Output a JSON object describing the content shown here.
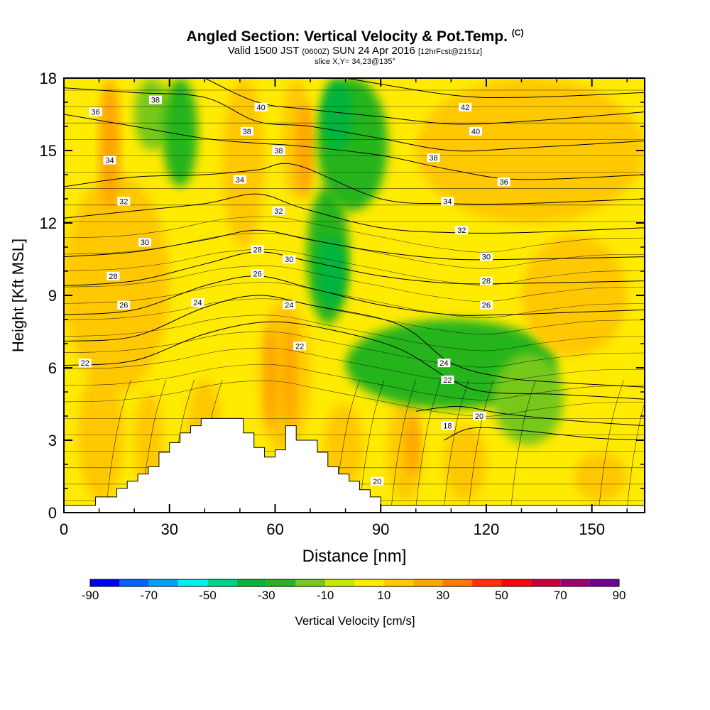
{
  "header": {
    "title": "Angled Section: Vertical Velocity & Pot.Temp.",
    "title_unit": "(C)",
    "valid_prefix": "Valid 1500 JST",
    "valid_utc": "(0600Z)",
    "valid_date": "SUN 24 Apr 2016",
    "forecast": "[12hrFcst@2151z]",
    "slice": "slice X,Y= 34,23@135°"
  },
  "colorbar": {
    "label": "Vertical Velocity [cm/s]",
    "ticks": [
      "-90",
      "-70",
      "-50",
      "-30",
      "-10",
      "10",
      "30",
      "50",
      "70",
      "90"
    ],
    "colors": [
      "#0000f0",
      "#0064ff",
      "#00a0ff",
      "#00f0f0",
      "#00d28c",
      "#00b43c",
      "#28b41e",
      "#78c81e",
      "#c8e600",
      "#ffeb00",
      "#ffc800",
      "#ffa500",
      "#ff7800",
      "#ff3200",
      "#f00a0a",
      "#c8003c",
      "#a0006e",
      "#6e0096"
    ]
  },
  "chart_data": {
    "type": "heatmap",
    "xlabel": "Distance [nm]",
    "ylabel": "Height [Kft MSL]",
    "xlim": [
      0,
      165
    ],
    "ylim": [
      0,
      18
    ],
    "xticks": [
      "0",
      "30",
      "60",
      "90",
      "120",
      "150"
    ],
    "yticks": [
      "0",
      "3",
      "6",
      "9",
      "12",
      "15",
      "18"
    ],
    "background_color": "#c8e600",
    "field_cells": [
      {
        "x": [
          0,
          165
        ],
        "y": [
          0,
          18
        ],
        "w": "0 to 10"
      },
      {
        "x": [
          4,
          17
        ],
        "y": [
          0.5,
          6
        ],
        "w": "10 to 20"
      },
      {
        "x": [
          20,
          28
        ],
        "y": [
          1,
          5
        ],
        "w": "10 to 20"
      },
      {
        "x": [
          35,
          45
        ],
        "y": [
          1,
          5.5
        ],
        "w": "10 to 20"
      },
      {
        "x": [
          55,
          70
        ],
        "y": [
          2.5,
          8.8
        ],
        "w": "10 to 20"
      },
      {
        "x": [
          57,
          61
        ],
        "y": [
          3.5,
          7.8
        ],
        "w": "20 to 30"
      },
      {
        "x": [
          62,
          66
        ],
        "y": [
          3.5,
          7.8
        ],
        "w": "20 to 30"
      },
      {
        "x": [
          74,
          85
        ],
        "y": [
          1,
          4.5
        ],
        "w": "10 to 20"
      },
      {
        "x": [
          92,
          102
        ],
        "y": [
          0.5,
          4.8
        ],
        "w": "10 to 20"
      },
      {
        "x": [
          97,
          101
        ],
        "y": [
          1.5,
          4
        ],
        "w": "20 to 30"
      },
      {
        "x": [
          108,
          120
        ],
        "y": [
          0.5,
          3.6
        ],
        "w": "10 to 20"
      },
      {
        "x": [
          145,
          160
        ],
        "y": [
          0.5,
          2.5
        ],
        "w": "10 to 20"
      },
      {
        "x": [
          0,
          30
        ],
        "y": [
          5,
          14
        ],
        "w": "10 to 20"
      },
      {
        "x": [
          10,
          16
        ],
        "y": [
          12.5,
          18
        ],
        "w": "20 to 30"
      },
      {
        "x": [
          20,
          30
        ],
        "y": [
          15,
          18
        ],
        "w": "-10 to -20"
      },
      {
        "x": [
          28,
          38
        ],
        "y": [
          13.5,
          18
        ],
        "w": "-20 to -30"
      },
      {
        "x": [
          45,
          57
        ],
        "y": [
          11,
          18
        ],
        "w": "10 to 20"
      },
      {
        "x": [
          62,
          70
        ],
        "y": [
          13,
          18
        ],
        "w": "10 to 20"
      },
      {
        "x": [
          66,
          71
        ],
        "y": [
          13,
          17
        ],
        "w": "20 to 30"
      },
      {
        "x": [
          69,
          81
        ],
        "y": [
          7.8,
          13.5
        ],
        "w": "-20 to -30"
      },
      {
        "x": [
          72,
          80
        ],
        "y": [
          8.5,
          11.5
        ],
        "w": "-30 to -40"
      },
      {
        "x": [
          72,
          92
        ],
        "y": [
          12.5,
          18
        ],
        "w": "-20 to -30"
      },
      {
        "x": [
          73,
          82
        ],
        "y": [
          15,
          18
        ],
        "w": "-30 to -40"
      },
      {
        "x": [
          80,
          140
        ],
        "y": [
          4.3,
          8
        ],
        "w": "-20 to -30"
      },
      {
        "x": [
          100,
          165
        ],
        "y": [
          12,
          18
        ],
        "w": "10 to 20"
      },
      {
        "x": [
          130,
          160
        ],
        "y": [
          6.5,
          11.5
        ],
        "w": "10 to 20"
      },
      {
        "x": [
          122,
          142
        ],
        "y": [
          2.8,
          6.6
        ],
        "w": "-10 to -20"
      }
    ],
    "theta_contours": [
      {
        "label": "18",
        "x": [
          108,
          116,
          130,
          150,
          165
        ],
        "y": [
          3.0,
          3.5,
          3.4,
          3.1,
          3.0
        ]
      },
      {
        "label": "20",
        "x": [
          100,
          112,
          125,
          145,
          165
        ],
        "y": [
          4.2,
          4.4,
          4.1,
          3.8,
          3.6
        ]
      },
      {
        "label": "22",
        "x": [
          0,
          20,
          40,
          58,
          75,
          95,
          110,
          120,
          140,
          165
        ],
        "y": [
          6.1,
          6.3,
          7.4,
          7.9,
          7.6,
          6.8,
          5.5,
          5.0,
          4.9,
          4.7
        ]
      },
      {
        "label": "24",
        "x": [
          0,
          20,
          40,
          55,
          70,
          95,
          110,
          125,
          140,
          165
        ],
        "y": [
          7.1,
          7.3,
          8.5,
          9.0,
          8.6,
          7.8,
          6.2,
          5.6,
          5.4,
          5.2
        ]
      },
      {
        "label": "26",
        "x": [
          0,
          20,
          40,
          55,
          70,
          90,
          110,
          125,
          145,
          165
        ],
        "y": [
          8.2,
          8.4,
          9.4,
          9.8,
          9.3,
          8.6,
          8.2,
          8.2,
          8.3,
          8.4
        ]
      },
      {
        "label": "28",
        "x": [
          0,
          20,
          40,
          55,
          70,
          90,
          110,
          130,
          165
        ],
        "y": [
          9.4,
          9.6,
          10.3,
          10.8,
          10.4,
          9.8,
          9.5,
          9.5,
          9.6
        ]
      },
      {
        "label": "30",
        "x": [
          0,
          20,
          40,
          55,
          70,
          90,
          110,
          130,
          165
        ],
        "y": [
          10.6,
          10.8,
          11.3,
          11.7,
          11.3,
          10.8,
          10.5,
          10.5,
          10.6
        ]
      },
      {
        "label": "32",
        "x": [
          0,
          20,
          40,
          55,
          68,
          90,
          110,
          130,
          165
        ],
        "y": [
          12.2,
          12.5,
          12.8,
          13.2,
          12.6,
          11.8,
          11.6,
          11.6,
          11.8
        ]
      },
      {
        "label": "34",
        "x": [
          0,
          20,
          40,
          55,
          66,
          90,
          110,
          130,
          165
        ],
        "y": [
          13.5,
          13.9,
          14.0,
          14.2,
          14.4,
          13.0,
          12.8,
          12.8,
          13.0
        ]
      },
      {
        "label": "36",
        "x": [
          0,
          20,
          40,
          55,
          66,
          90,
          110,
          130,
          165
        ],
        "y": [
          16.5,
          16.0,
          15.5,
          15.3,
          15.2,
          14.8,
          14.2,
          13.8,
          14.0
        ]
      },
      {
        "label": "38",
        "x": [
          0,
          20,
          40,
          55,
          70,
          90,
          110,
          130,
          165
        ],
        "y": [
          17.6,
          17.4,
          17.2,
          16.2,
          16.0,
          15.5,
          15.0,
          15.1,
          15.4
        ]
      },
      {
        "label": "40",
        "x": [
          40,
          55,
          70,
          90,
          110,
          130,
          165
        ],
        "y": [
          18,
          17.0,
          16.7,
          16.4,
          16.1,
          16.2,
          16.6
        ]
      },
      {
        "label": "42",
        "x": [
          80,
          110,
          130,
          165
        ],
        "y": [
          18,
          17.3,
          17.2,
          17.4
        ]
      }
    ],
    "contour_labels": [
      {
        "text": "38",
        "x": 26,
        "y": 17.1
      },
      {
        "text": "36",
        "x": 9,
        "y": 16.6
      },
      {
        "text": "40",
        "x": 56,
        "y": 16.8
      },
      {
        "text": "42",
        "x": 114,
        "y": 16.8
      },
      {
        "text": "38",
        "x": 52,
        "y": 15.8
      },
      {
        "text": "40",
        "x": 117,
        "y": 15.8
      },
      {
        "text": "38",
        "x": 61,
        "y": 15.0
      },
      {
        "text": "38",
        "x": 105,
        "y": 14.7
      },
      {
        "text": "34",
        "x": 13,
        "y": 14.6
      },
      {
        "text": "34",
        "x": 50,
        "y": 13.8
      },
      {
        "text": "36",
        "x": 125,
        "y": 13.7
      },
      {
        "text": "32",
        "x": 17,
        "y": 12.9
      },
      {
        "text": "34",
        "x": 109,
        "y": 12.9
      },
      {
        "text": "32",
        "x": 61,
        "y": 12.5
      },
      {
        "text": "32",
        "x": 113,
        "y": 11.7
      },
      {
        "text": "30",
        "x": 23,
        "y": 11.2
      },
      {
        "text": "28",
        "x": 55,
        "y": 10.9
      },
      {
        "text": "30",
        "x": 64,
        "y": 10.5
      },
      {
        "text": "30",
        "x": 120,
        "y": 10.6
      },
      {
        "text": "28",
        "x": 14,
        "y": 9.8
      },
      {
        "text": "26",
        "x": 55,
        "y": 9.9
      },
      {
        "text": "28",
        "x": 120,
        "y": 9.6
      },
      {
        "text": "26",
        "x": 17,
        "y": 8.6
      },
      {
        "text": "24",
        "x": 38,
        "y": 8.7
      },
      {
        "text": "24",
        "x": 64,
        "y": 8.6
      },
      {
        "text": "26",
        "x": 120,
        "y": 8.6
      },
      {
        "text": "22",
        "x": 6,
        "y": 6.2
      },
      {
        "text": "22",
        "x": 67,
        "y": 6.9
      },
      {
        "text": "24",
        "x": 108,
        "y": 6.2
      },
      {
        "text": "22",
        "x": 109,
        "y": 5.5
      },
      {
        "text": "20",
        "x": 118,
        "y": 4.0
      },
      {
        "text": "18",
        "x": 109,
        "y": 3.6
      },
      {
        "text": "20",
        "x": 89,
        "y": 1.3
      }
    ],
    "terrain": {
      "x": [
        0,
        9,
        9,
        15,
        15,
        18,
        18,
        21,
        21,
        24,
        24,
        27,
        27,
        30,
        30,
        33,
        33,
        36,
        36,
        39,
        39,
        42,
        42,
        51,
        51,
        54,
        54,
        57,
        57,
        60,
        60,
        63,
        63,
        66,
        66,
        72,
        72,
        75,
        75,
        78,
        78,
        81,
        81,
        84,
        84,
        87,
        87,
        90,
        90,
        165
      ],
      "y": [
        0.3,
        0.3,
        0.65,
        0.65,
        1.0,
        1.0,
        1.3,
        1.3,
        1.6,
        1.6,
        1.9,
        1.9,
        2.5,
        2.5,
        2.9,
        2.9,
        3.3,
        3.3,
        3.6,
        3.6,
        3.9,
        3.9,
        3.9,
        3.9,
        3.3,
        3.3,
        2.7,
        2.7,
        2.3,
        2.3,
        2.6,
        2.6,
        3.6,
        3.6,
        3.0,
        3.0,
        2.5,
        2.5,
        1.9,
        1.9,
        1.6,
        1.6,
        1.3,
        1.3,
        0.95,
        0.95,
        0.65,
        0.65,
        0.3,
        0.3
      ]
    }
  }
}
